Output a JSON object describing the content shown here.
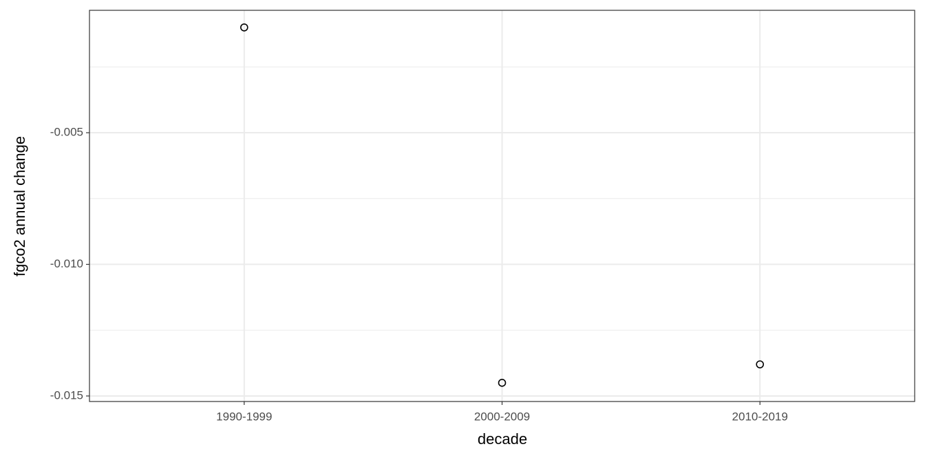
{
  "chart_data": {
    "type": "scatter",
    "x_label": "decade",
    "y_label": "fgco2 annual change",
    "categories": [
      "1990-1999",
      "2000-2009",
      "2010-2019"
    ],
    "values": [
      -0.001,
      -0.0145,
      -0.0138
    ],
    "color": "#000000",
    "ylim": [
      -0.01521,
      -0.00035
    ],
    "yticks": [
      {
        "value": -0.015,
        "label": "-0.015"
      },
      {
        "value": -0.01,
        "label": "-0.010"
      },
      -0.005
    ],
    "grid": true
  }
}
